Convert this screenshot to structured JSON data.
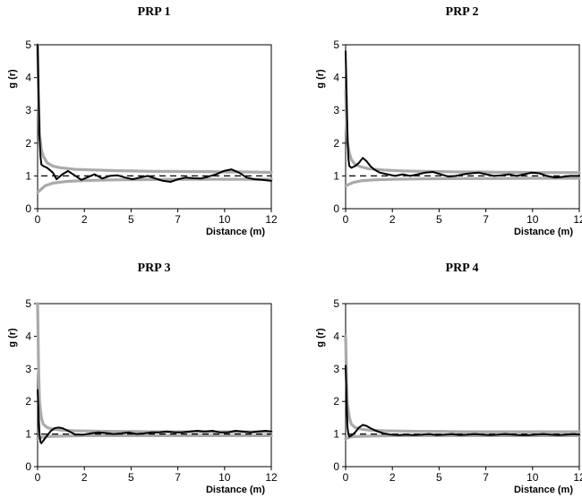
{
  "chart_data": [
    {
      "type": "line",
      "title": "PRP 1",
      "xlabel": "Distance (m)",
      "ylabel": "g (r)",
      "xlim": [
        0,
        12.3
      ],
      "ylim": [
        0,
        5
      ],
      "x_ticks": [
        "0",
        "2",
        "5",
        "7",
        "10",
        "12"
      ],
      "x_tick_values": [
        0,
        2.46,
        4.92,
        7.38,
        9.84,
        12.3
      ],
      "y_ticks": [
        0,
        1,
        2,
        3,
        4,
        5
      ],
      "reference_line": 1,
      "series": [
        {
          "role": "upper envelope",
          "color": "#aaaaaa",
          "x": [
            0,
            0.05,
            0.1,
            0.2,
            0.3,
            0.5,
            0.8,
            1.2,
            2,
            3,
            4,
            5,
            6,
            7,
            8,
            9,
            10,
            11,
            12,
            12.3
          ],
          "y": [
            5.0,
            3.2,
            2.3,
            1.8,
            1.6,
            1.4,
            1.3,
            1.25,
            1.2,
            1.18,
            1.16,
            1.15,
            1.14,
            1.14,
            1.13,
            1.13,
            1.12,
            1.12,
            1.11,
            1.11
          ]
        },
        {
          "role": "lower envelope",
          "color": "#aaaaaa",
          "x": [
            0,
            0.1,
            0.2,
            0.4,
            0.8,
            1.5,
            2.5,
            4,
            6,
            8,
            10,
            12.3
          ],
          "y": [
            0.5,
            0.55,
            0.6,
            0.7,
            0.78,
            0.83,
            0.86,
            0.88,
            0.89,
            0.9,
            0.9,
            0.9
          ]
        },
        {
          "role": "observed",
          "color": "#000000",
          "x": [
            0,
            0.05,
            0.1,
            0.15,
            0.2,
            0.3,
            0.5,
            0.8,
            1.0,
            1.3,
            1.6,
            2.0,
            2.3,
            2.6,
            3.0,
            3.4,
            3.8,
            4.2,
            4.6,
            5.0,
            5.4,
            5.8,
            6.2,
            6.6,
            7.0,
            7.4,
            7.8,
            8.2,
            8.6,
            9.0,
            9.4,
            9.8,
            10.2,
            10.6,
            11.0,
            11.4,
            11.8,
            12.3
          ],
          "y": [
            5.0,
            3.5,
            2.2,
            1.6,
            1.35,
            1.3,
            1.25,
            1.1,
            0.9,
            1.05,
            1.15,
            1.0,
            0.88,
            0.95,
            1.05,
            0.92,
            1.0,
            1.02,
            0.95,
            0.9,
            0.95,
            1.0,
            0.92,
            0.85,
            0.82,
            0.9,
            0.95,
            0.93,
            0.92,
            0.98,
            1.05,
            1.15,
            1.2,
            1.1,
            0.95,
            0.9,
            0.88,
            0.85
          ]
        }
      ]
    },
    {
      "type": "line",
      "title": "PRP 2",
      "xlabel": "Distance (m)",
      "ylabel": "g (r)",
      "xlim": [
        0,
        12.3
      ],
      "ylim": [
        0,
        5
      ],
      "x_ticks": [
        "0",
        "2",
        "5",
        "7",
        "10",
        "12"
      ],
      "x_tick_values": [
        0,
        2.46,
        4.92,
        7.38,
        9.84,
        12.3
      ],
      "y_ticks": [
        0,
        1,
        2,
        3,
        4,
        5
      ],
      "reference_line": 1,
      "series": [
        {
          "role": "upper envelope",
          "color": "#aaaaaa",
          "x": [
            0,
            0.05,
            0.1,
            0.2,
            0.3,
            0.5,
            0.8,
            1.2,
            2,
            3,
            4,
            5,
            6,
            7,
            8,
            9,
            10,
            11,
            12,
            12.3
          ],
          "y": [
            3.6,
            2.6,
            2.0,
            1.7,
            1.5,
            1.35,
            1.28,
            1.22,
            1.18,
            1.15,
            1.14,
            1.13,
            1.12,
            1.12,
            1.11,
            1.11,
            1.1,
            1.1,
            1.1,
            1.1
          ]
        },
        {
          "role": "lower envelope",
          "color": "#aaaaaa",
          "x": [
            0,
            0.1,
            0.2,
            0.4,
            0.8,
            1.5,
            2.5,
            4,
            6,
            8,
            10,
            12.3
          ],
          "y": [
            0.7,
            0.72,
            0.75,
            0.8,
            0.85,
            0.88,
            0.9,
            0.91,
            0.92,
            0.92,
            0.93,
            0.93
          ]
        },
        {
          "role": "observed",
          "color": "#000000",
          "x": [
            0,
            0.05,
            0.1,
            0.15,
            0.2,
            0.3,
            0.5,
            0.7,
            0.9,
            1.1,
            1.3,
            1.5,
            1.8,
            2.2,
            2.6,
            3.0,
            3.4,
            3.8,
            4.2,
            4.6,
            5.0,
            5.4,
            5.8,
            6.2,
            6.6,
            7.0,
            7.4,
            7.8,
            8.2,
            8.6,
            9.0,
            9.4,
            9.8,
            10.2,
            10.6,
            11.0,
            11.4,
            11.8,
            12.3
          ],
          "y": [
            4.8,
            3.5,
            2.2,
            1.5,
            1.3,
            1.25,
            1.3,
            1.4,
            1.55,
            1.45,
            1.3,
            1.2,
            1.1,
            1.05,
            1.0,
            1.05,
            1.0,
            1.05,
            1.1,
            1.12,
            1.05,
            0.98,
            1.0,
            1.05,
            1.08,
            1.1,
            1.05,
            1.0,
            1.02,
            1.05,
            1.0,
            1.05,
            1.1,
            1.08,
            1.0,
            0.95,
            0.97,
            1.0,
            1.0
          ]
        }
      ]
    },
    {
      "type": "line",
      "title": "PRP 3",
      "xlabel": "Distance (m)",
      "ylabel": "g (r)",
      "xlim": [
        0,
        12.3
      ],
      "ylim": [
        0,
        5
      ],
      "x_ticks": [
        "0",
        "2",
        "5",
        "7",
        "10",
        "12"
      ],
      "x_tick_values": [
        0,
        2.46,
        4.92,
        7.38,
        9.84,
        12.3
      ],
      "y_ticks": [
        0,
        1,
        2,
        3,
        4,
        5
      ],
      "reference_line": 1,
      "series": [
        {
          "role": "upper envelope",
          "color": "#aaaaaa",
          "x": [
            0,
            0.05,
            0.1,
            0.2,
            0.3,
            0.5,
            0.8,
            1.2,
            2,
            3,
            4,
            5,
            6,
            7,
            8,
            9,
            10,
            11,
            12,
            12.3
          ],
          "y": [
            5.0,
            3.0,
            2.0,
            1.5,
            1.3,
            1.2,
            1.15,
            1.12,
            1.1,
            1.09,
            1.08,
            1.08,
            1.07,
            1.07,
            1.07,
            1.07,
            1.07,
            1.07,
            1.07,
            1.07
          ]
        },
        {
          "role": "lower envelope",
          "color": "#aaaaaa",
          "x": [
            0,
            0.1,
            0.2,
            0.4,
            0.8,
            1.5,
            2.5,
            4,
            6,
            8,
            10,
            12.3
          ],
          "y": [
            0.85,
            0.88,
            0.9,
            0.92,
            0.93,
            0.94,
            0.95,
            0.95,
            0.95,
            0.95,
            0.95,
            0.95
          ]
        },
        {
          "role": "observed",
          "color": "#000000",
          "x": [
            0,
            0.05,
            0.1,
            0.15,
            0.2,
            0.3,
            0.5,
            0.7,
            0.9,
            1.1,
            1.3,
            1.6,
            2.0,
            2.4,
            2.8,
            3.2,
            3.6,
            4.0,
            4.4,
            4.8,
            5.2,
            5.6,
            6.0,
            6.4,
            6.8,
            7.2,
            7.6,
            8.0,
            8.4,
            8.8,
            9.2,
            9.6,
            10.0,
            10.4,
            10.8,
            11.2,
            11.6,
            12.0,
            12.3
          ],
          "y": [
            2.35,
            1.6,
            1.0,
            0.75,
            0.72,
            0.8,
            0.95,
            1.1,
            1.18,
            1.2,
            1.18,
            1.1,
            0.98,
            0.98,
            1.02,
            1.05,
            1.03,
            1.0,
            1.02,
            1.05,
            1.0,
            1.02,
            1.05,
            1.05,
            1.08,
            1.05,
            1.05,
            1.08,
            1.1,
            1.08,
            1.1,
            1.05,
            1.05,
            1.1,
            1.08,
            1.05,
            1.08,
            1.1,
            1.08
          ]
        }
      ]
    },
    {
      "type": "line",
      "title": "PRP 4",
      "xlabel": "Distance (m)",
      "ylabel": "g (r)",
      "xlim": [
        0,
        12.3
      ],
      "ylim": [
        0,
        5
      ],
      "x_ticks": [
        "0",
        "2",
        "5",
        "7",
        "10",
        "12"
      ],
      "x_tick_values": [
        0,
        2.46,
        4.92,
        7.38,
        9.84,
        12.3
      ],
      "y_ticks": [
        0,
        1,
        2,
        3,
        4,
        5
      ],
      "reference_line": 1,
      "series": [
        {
          "role": "upper envelope",
          "color": "#aaaaaa",
          "x": [
            0,
            0.05,
            0.1,
            0.2,
            0.3,
            0.5,
            0.8,
            1.2,
            2,
            3,
            4,
            5,
            6,
            7,
            8,
            9,
            10,
            11,
            12,
            12.3
          ],
          "y": [
            4.0,
            2.6,
            1.9,
            1.5,
            1.3,
            1.2,
            1.15,
            1.12,
            1.1,
            1.09,
            1.08,
            1.08,
            1.07,
            1.07,
            1.07,
            1.07,
            1.07,
            1.07,
            1.07,
            1.07
          ]
        },
        {
          "role": "lower envelope",
          "color": "#aaaaaa",
          "x": [
            0,
            0.1,
            0.2,
            0.4,
            0.8,
            1.5,
            2.5,
            4,
            6,
            8,
            10,
            12.3
          ],
          "y": [
            0.85,
            0.88,
            0.9,
            0.92,
            0.93,
            0.94,
            0.95,
            0.95,
            0.95,
            0.95,
            0.95,
            0.95
          ]
        },
        {
          "role": "observed",
          "color": "#000000",
          "x": [
            0,
            0.05,
            0.1,
            0.15,
            0.2,
            0.3,
            0.5,
            0.7,
            0.9,
            1.1,
            1.3,
            1.6,
            2.0,
            2.4,
            2.8,
            3.2,
            3.6,
            4.0,
            4.4,
            4.8,
            5.2,
            5.6,
            6.0,
            6.4,
            6.8,
            7.2,
            7.6,
            8.0,
            8.4,
            8.8,
            9.2,
            9.6,
            10.0,
            10.4,
            10.8,
            11.2,
            11.6,
            12.0,
            12.3
          ],
          "y": [
            3.1,
            2.0,
            1.2,
            0.98,
            0.92,
            0.95,
            1.05,
            1.2,
            1.28,
            1.25,
            1.18,
            1.1,
            1.02,
            0.98,
            0.97,
            0.98,
            0.97,
            0.98,
            1.0,
            0.97,
            0.98,
            1.0,
            0.97,
            0.98,
            1.0,
            0.98,
            0.97,
            0.98,
            1.0,
            0.98,
            0.97,
            0.97,
            0.98,
            1.0,
            0.98,
            0.97,
            0.98,
            1.0,
            0.98
          ]
        }
      ]
    }
  ]
}
